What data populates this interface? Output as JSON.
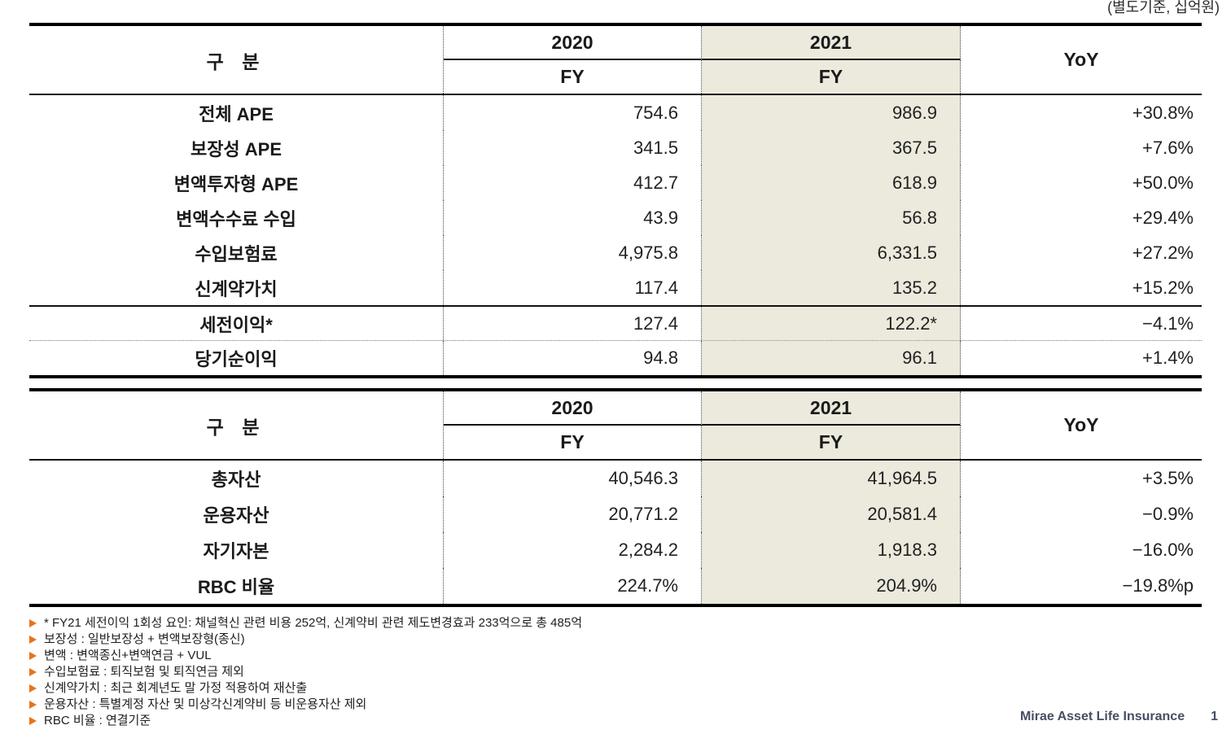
{
  "page": {
    "unit_note": "(별도기준, 십억원)"
  },
  "header": {
    "category": "구 분",
    "year_2020": "2020",
    "year_2021": "2021",
    "fy": "FY",
    "yoy": "YoY"
  },
  "table1": {
    "rows": [
      {
        "label": "전체 APE",
        "fy2020": "754.6",
        "fy2021": "986.9",
        "yoy": "+30.8%"
      },
      {
        "label": "보장성 APE",
        "fy2020": "341.5",
        "fy2021": "367.5",
        "yoy": "+7.6%"
      },
      {
        "label": "변액투자형 APE",
        "fy2020": "412.7",
        "fy2021": "618.9",
        "yoy": "+50.0%"
      },
      {
        "label": "변액수수료 수입",
        "fy2020": "43.9",
        "fy2021": "56.8",
        "yoy": "+29.4%"
      },
      {
        "label": "수입보험료",
        "fy2020": "4,975.8",
        "fy2021": "6,331.5",
        "yoy": "+27.2%"
      },
      {
        "label": "신계약가치",
        "fy2020": "117.4",
        "fy2021": "135.2",
        "yoy": "+15.2%"
      },
      {
        "label": "세전이익*",
        "fy2020": "127.4",
        "fy2021": "122.2*",
        "yoy": "−4.1%"
      },
      {
        "label": "당기순이익",
        "fy2020": "94.8",
        "fy2021": "96.1",
        "yoy": "+1.4%"
      }
    ]
  },
  "table2": {
    "rows": [
      {
        "label": "총자산",
        "fy2020": "40,546.3",
        "fy2021": "41,964.5",
        "yoy": "+3.5%"
      },
      {
        "label": "운용자산",
        "fy2020": "20,771.2",
        "fy2021": "20,581.4",
        "yoy": "−0.9%"
      },
      {
        "label": "자기자본",
        "fy2020": "2,284.2",
        "fy2021": "1,918.3",
        "yoy": "−16.0%"
      },
      {
        "label": "RBC 비율",
        "fy2020": "224.7%",
        "fy2021": "204.9%",
        "yoy": "−19.8%p"
      }
    ]
  },
  "footnotes": {
    "items": [
      "* FY21 세전이익 1회성 요인: 채널혁신 관련 비용 252억, 신계약비 관련 제도변경효과 233억으로 총 485억",
      "보장성 : 일반보장성 + 변액보장형(종신)",
      "변액 : 변액종신+변액연금 + VUL",
      "수입보험료 : 퇴직보험 및 퇴직연금 제외",
      "신계약가치 : 최근 회계년도 말 가정 적용하여 재산출",
      "운용자산 : 특별계정 자산 및 미상각신계약비 등 비운용자산 제외",
      "RBC 비율 : 연결기준"
    ]
  },
  "footer": {
    "company": "Mirae Asset Life Insurance",
    "page_number": "1"
  },
  "colors": {
    "highlight_column": "#ECE9DD",
    "bullet_orange": "#E8731A",
    "footer_navy": "#454F63"
  }
}
